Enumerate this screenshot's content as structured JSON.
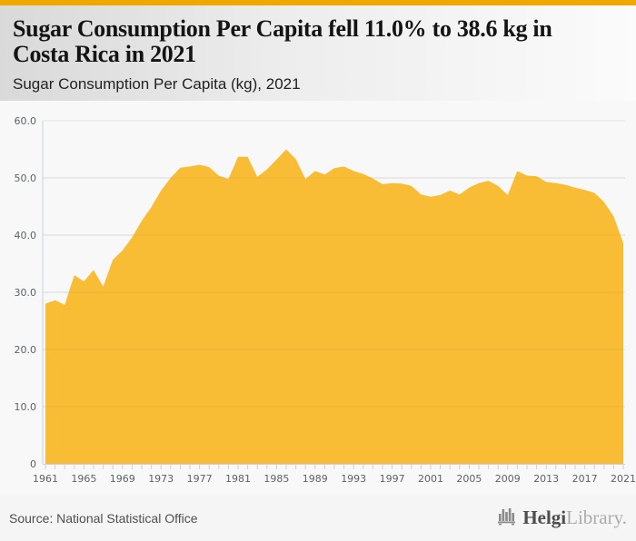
{
  "header": {
    "title_line1": "Sugar Consumption Per Capita fell 11.0% to 38.6 kg in",
    "title_line2": "Costa Rica in 2021",
    "subtitle": "Sugar Consumption Per Capita (kg), 2021"
  },
  "footer": {
    "source": "Source: National Statistical Office",
    "brand_primary": "Helgi",
    "brand_secondary": "Library."
  },
  "colors": {
    "accent_top_bar": "#F0A800",
    "area_fill": "#F9BD35",
    "grid_line": "#E3E3E3",
    "axis_line": "#C9D1E2",
    "axis_text": "#5E6268"
  },
  "chart_data": {
    "type": "area",
    "title": "Sugar Consumption Per Capita (kg), 2021",
    "series_name": "Sugar Consumption Per Capita (kg)",
    "x": [
      1961,
      1962,
      1963,
      1964,
      1965,
      1966,
      1967,
      1968,
      1969,
      1970,
      1971,
      1972,
      1973,
      1974,
      1975,
      1976,
      1977,
      1978,
      1979,
      1980,
      1981,
      1982,
      1983,
      1984,
      1985,
      1986,
      1987,
      1988,
      1989,
      1990,
      1991,
      1992,
      1993,
      1994,
      1995,
      1996,
      1997,
      1998,
      1999,
      2000,
      2001,
      2002,
      2003,
      2004,
      2005,
      2006,
      2007,
      2008,
      2009,
      2010,
      2011,
      2012,
      2013,
      2014,
      2015,
      2016,
      2017,
      2018,
      2019,
      2020,
      2021
    ],
    "values": [
      28.0,
      28.6,
      27.8,
      33.0,
      31.9,
      33.9,
      31.0,
      35.7,
      37.3,
      39.6,
      42.5,
      44.9,
      47.8,
      50.0,
      51.8,
      52.0,
      52.3,
      51.9,
      50.4,
      49.8,
      53.7,
      53.7,
      50.2,
      51.5,
      53.2,
      55.0,
      53.3,
      49.8,
      51.2,
      50.6,
      51.7,
      52.0,
      51.2,
      50.7,
      49.9,
      48.9,
      49.1,
      49.0,
      48.6,
      47.1,
      46.7,
      47.0,
      47.8,
      47.1,
      48.3,
      49.1,
      49.5,
      48.6,
      47.0,
      51.2,
      50.4,
      50.3,
      49.3,
      49.1,
      48.8,
      48.3,
      47.9,
      47.4,
      45.8,
      43.3,
      38.6
    ],
    "ylim": [
      0,
      60
    ],
    "yticks": [
      0,
      10,
      20,
      30,
      40,
      50,
      60
    ],
    "ytick_labels": [
      "0",
      "10.0",
      "20.0",
      "30.0",
      "40.0",
      "50.0",
      "60.0"
    ],
    "xtick_labels": [
      "1961",
      "1965",
      "1969",
      "1973",
      "1977",
      "1981",
      "1985",
      "1989",
      "1993",
      "1997",
      "2001",
      "2005",
      "2009",
      "2013",
      "2017",
      "2021"
    ],
    "xtick_every": 4,
    "grid": true,
    "legend": "none",
    "fill_color": "#F9BD35"
  }
}
